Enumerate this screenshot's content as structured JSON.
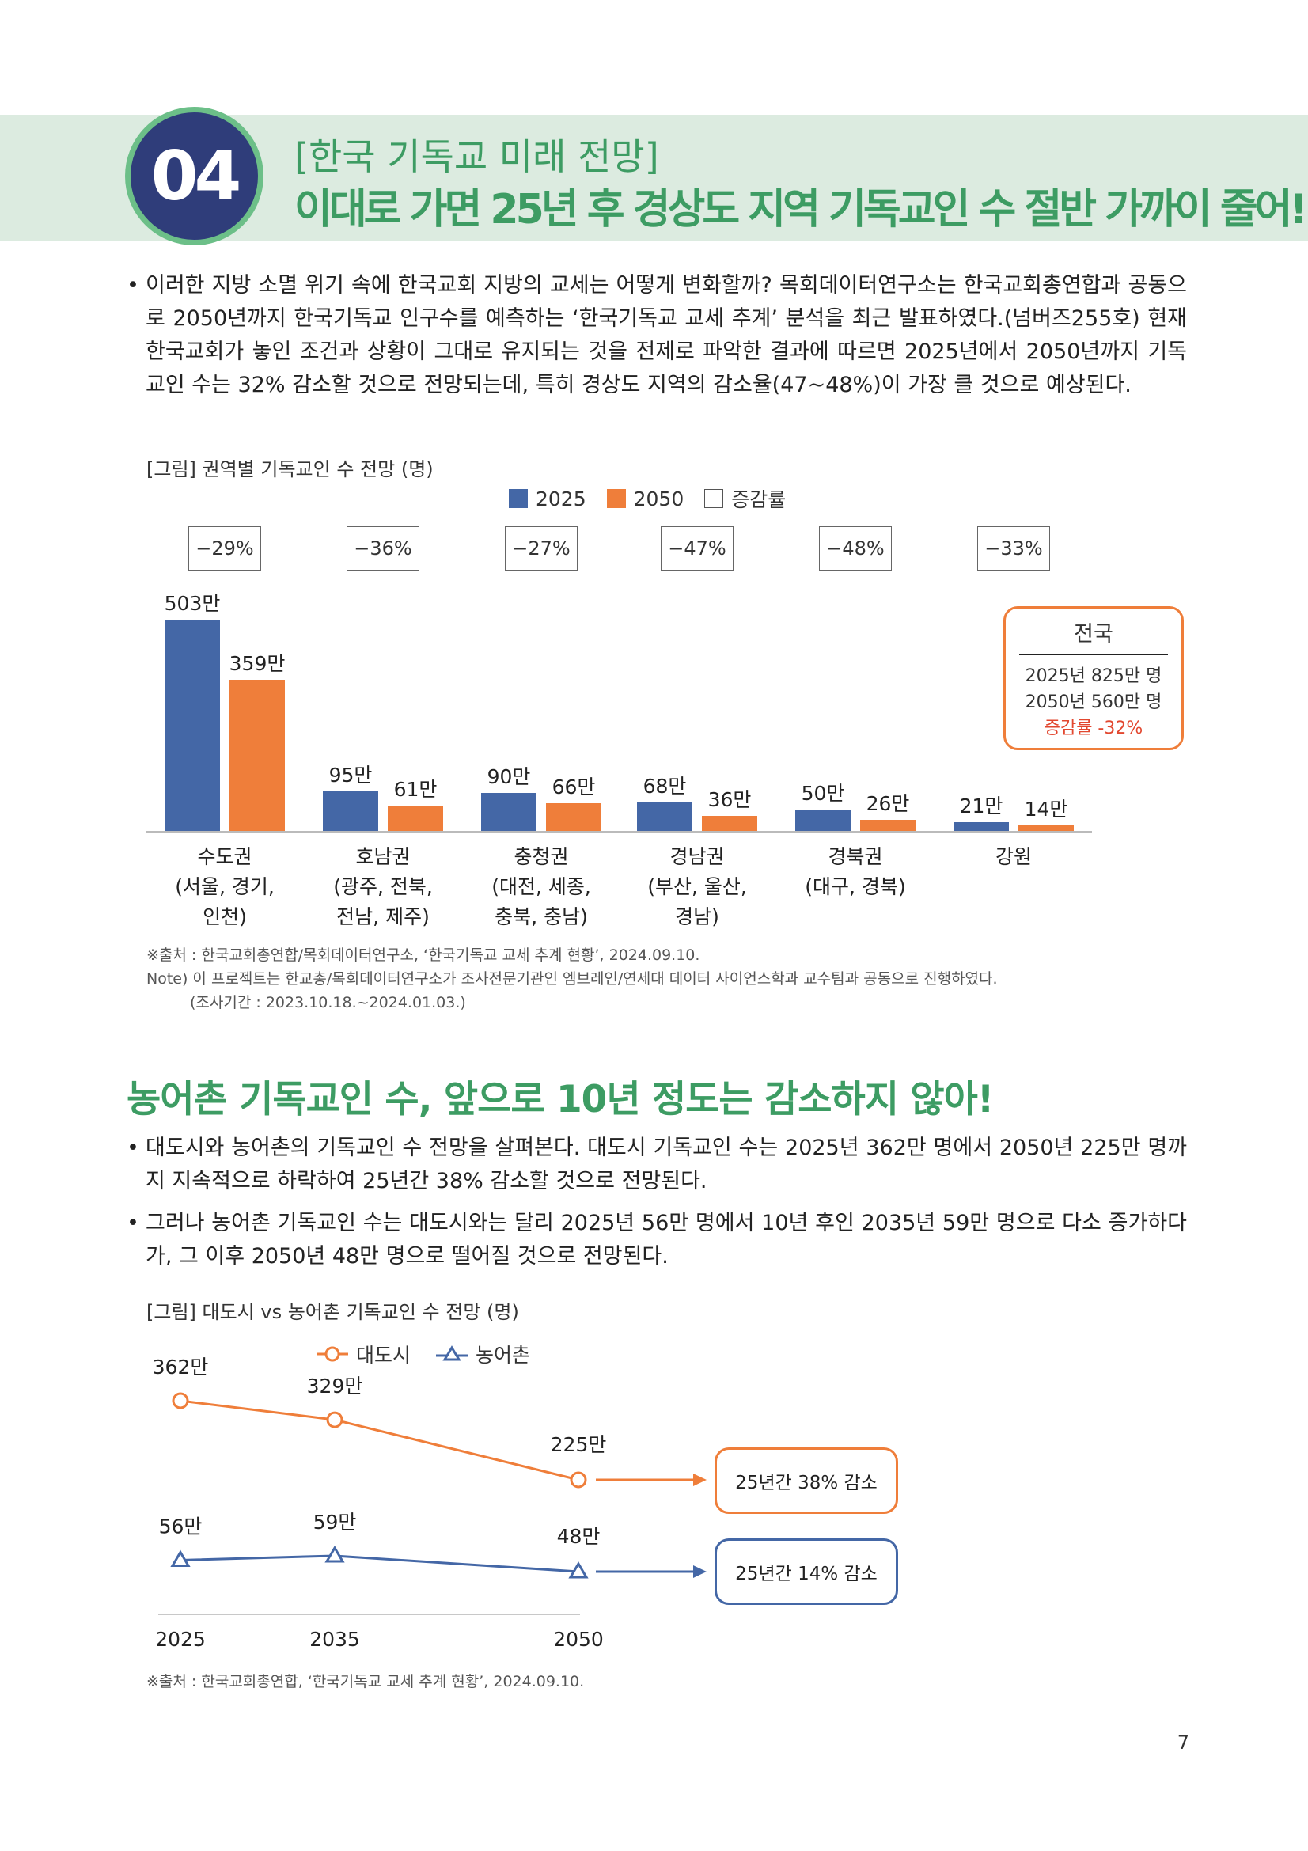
{
  "header": {
    "badge": "04",
    "kicker": "[한국 기독교 미래 전망]",
    "title": "이대로 가면 25년 후 경상도 지역 기독교인 수 절반 가까이 줄어!"
  },
  "intro": {
    "bullet": "•",
    "text": "이러한 지방 소멸 위기 속에 한국교회 지방의 교세는 어떻게 변화할까? 목회데이터연구소는 한국교회총연합과 공동으로 2050년까지 한국기독교 인구수를 예측하는 ‘한국기독교 교세 추계’ 분석을 최근 발표하였다.(넘버즈255호) 현재 한국교회가 놓인 조건과 상황이 그대로 유지되는 것을 전제로 파악한 결과에 따르면 2025년에서 2050년까지 기독교인 수는 32% 감소할 것으로 전망되는데, 특히 경상도 지역의 감소율(47~48%)이 가장 클 것으로 예상된다."
  },
  "figure1": {
    "caption": "[그림] 권역별 기독교인 수 전망 (명)",
    "source": "※출처 : 한국교회총연합/목회데이터연구소, ‘한국기독교 교세 추계 현황’, 2024.09.10.",
    "note": "Note) 이 프로젝트는 한교총/목회데이터연구소가 조사전문기관인 엠브레인/연세대 데이터 사이언스학과 교수팀과 공동으로 진행하였다.",
    "period": "(조사기간 : 2023.10.18.~2024.01.03.)",
    "national": {
      "title": "전국",
      "line1": "2025년 825만 명",
      "line2": "2050년 560만 명",
      "rate": "증감률 -32%"
    }
  },
  "figure2": {
    "caption": "[그림] 대도시 vs 농어촌 기독교인 수 전망 (명)",
    "source": "※출처 : 한국교회총연합, ‘한국기독교 교세 추계 현황’, 2024.09.10.",
    "callout_city": "25년간 38% 감소",
    "callout_rural": "25년간 14% 감소"
  },
  "section2": {
    "title": "농어촌 기독교인 수, 앞으로 10년 정도는 감소하지 않아!",
    "bullet1": "대도시와 농어촌의 기독교인 수 전망을 살펴본다. 대도시 기독교인 수는 2025년 362만 명에서 2050년 225만 명까지 지속적으로 하락하여 25년간 38% 감소할 것으로 전망된다.",
    "bullet2": "그러나 농어촌 기독교인 수는 대도시와는 달리 2025년 56만 명에서 10년 후인 2035년 59만 명으로 다소 증가하다가, 그 이후 2050년 48만 명으로 떨어질 것으로 전망된다.",
    "bullet": "•"
  },
  "page_number": "7",
  "colors": {
    "green": "#3d9c63",
    "navy": "#2f3d7a",
    "blue": "#4467a6",
    "orange": "#ef7e3a",
    "red": "#e2472f"
  },
  "chart_data": [
    {
      "type": "bar",
      "categories": [
        "수도권\n(서울, 경기,\n인천)",
        "호남권\n(광주, 전북,\n전남, 제주)",
        "충청권\n(대전, 세종,\n충북, 충남)",
        "경남권\n(부산, 울산,\n경남)",
        "경북권\n(대구, 경북)",
        "강원"
      ],
      "series": [
        {
          "name": "2025",
          "values": [
            503,
            95,
            90,
            68,
            50,
            21
          ],
          "labels": [
            "503만",
            "95만",
            "90만",
            "68만",
            "50만",
            "21만"
          ],
          "color": "#4467a6"
        },
        {
          "name": "2050",
          "values": [
            359,
            61,
            66,
            36,
            26,
            14
          ],
          "labels": [
            "359만",
            "61만",
            "66만",
            "36만",
            "26만",
            "14만"
          ],
          "color": "#ef7e3a"
        }
      ],
      "change": [
        "−29%",
        "−36%",
        "−27%",
        "−47%",
        "−48%",
        "−33%"
      ],
      "legend": [
        "2025",
        "2050",
        "증감률"
      ],
      "legend_position": "top-center",
      "ylim": [
        0,
        503
      ],
      "grid": false
    },
    {
      "type": "line",
      "x": [
        "2025",
        "2035",
        "2050"
      ],
      "series": [
        {
          "name": "대도시",
          "values": [
            362,
            329,
            225
          ],
          "labels": [
            "362만",
            "329만",
            "225만"
          ],
          "color": "#ef7e3a",
          "marker": "circle"
        },
        {
          "name": "농어촌",
          "values": [
            56,
            59,
            48
          ],
          "labels": [
            "56만",
            "59만",
            "48만"
          ],
          "color": "#4467a6",
          "marker": "triangle"
        }
      ],
      "legend_position": "top-center",
      "grid": false
    }
  ]
}
